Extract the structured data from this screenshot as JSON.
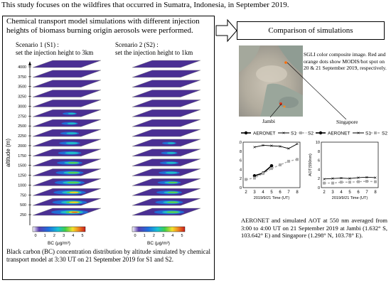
{
  "intro": "This study focuses on the wildfires that occurred in Sumatra, Indonesia, in September 2019.",
  "left_box": {
    "title": "Chemical transport model simulations with different injection heights of biomass burning origin aerosols were performed.",
    "scenario1": {
      "title": "Scenario 1 (S1) :",
      "subtitle": "set the injection height to 3km"
    },
    "scenario2": {
      "title": "Scenario 2 (S2) :",
      "subtitle": "set the injection height to 1km"
    },
    "y_axis_label": "altitude (m)",
    "altitude_ticks": [
      "4000",
      "3750",
      "3500",
      "3250",
      "3000",
      "2750",
      "2500",
      "2250",
      "2000",
      "1750",
      "1500",
      "1250",
      "1000",
      "750",
      "500",
      "250"
    ],
    "colorbar": {
      "ticks": [
        "0",
        "1",
        "2",
        "3",
        "4",
        "5"
      ],
      "label": "BC (μg/m³)"
    },
    "caption": "Black carbon (BC) concentration distribution by altitude simulated by chemical transport model at 3:30 UT on 21 September 2019 for S1 and S2."
  },
  "arrow_label": "Comparison of simulations",
  "satellite": {
    "note": "SGLI color composite image. Red and orange dots show MODIS/hot spot on 20 & 21 September 2019, respectively.",
    "jambi_label": "Jambi",
    "singapore_label": "Singapore"
  },
  "legend": {
    "aeronet": "AERONET",
    "s1": "S1",
    "s2": "S2"
  },
  "aer_caption": "AERONET and simulated AOT at 550 nm averaged from 3:00 to 4:00 UT on 21 September 2019 at Jambi (1.632° S, 103.642° E) and Singapore (1.298° N, 103.78° E).",
  "chart_data": [
    {
      "type": "line",
      "location": "Jambi",
      "xlabel": "2019/9/21 Time (UT)",
      "ylabel": "AOT(550nm)",
      "x_ticks": [
        2,
        3,
        4,
        5,
        6,
        7,
        8
      ],
      "y_ticks": [
        0,
        2,
        4,
        6,
        8,
        10
      ],
      "ylim": [
        0,
        10
      ],
      "series": [
        {
          "name": "AERONET",
          "x": [
            3,
            4,
            5
          ],
          "values": [
            2.6,
            3.2,
            4.8
          ]
        },
        {
          "name": "S1",
          "x": [
            3,
            4,
            5,
            6,
            7,
            8
          ],
          "values": [
            8.9,
            9.3,
            9.2,
            9.1,
            8.6,
            9.6
          ]
        },
        {
          "name": "S2",
          "x": [
            2,
            3,
            4,
            5,
            6,
            7,
            8
          ],
          "values": [
            1.8,
            2.1,
            3.1,
            4.2,
            5.0,
            5.8,
            6.2
          ]
        }
      ]
    },
    {
      "type": "line",
      "location": "Singapore",
      "xlabel": "2019/9/21 Time (UT)",
      "ylabel": "AOT(550nm)",
      "x_ticks": [
        2,
        3,
        4,
        5,
        6,
        7,
        8
      ],
      "y_ticks": [
        0,
        2,
        4,
        6,
        8,
        10
      ],
      "ylim": [
        0,
        10
      ],
      "series": [
        {
          "name": "S1",
          "x": [
            2,
            3,
            4,
            5,
            6,
            7,
            8
          ],
          "values": [
            1.9,
            2.0,
            2.1,
            2.0,
            2.2,
            2.3,
            2.2
          ]
        },
        {
          "name": "S2",
          "x": [
            2,
            3,
            4,
            5,
            6,
            7,
            8
          ],
          "values": [
            1.0,
            1.0,
            1.2,
            1.2,
            1.3,
            1.4,
            1.3
          ]
        }
      ]
    }
  ]
}
